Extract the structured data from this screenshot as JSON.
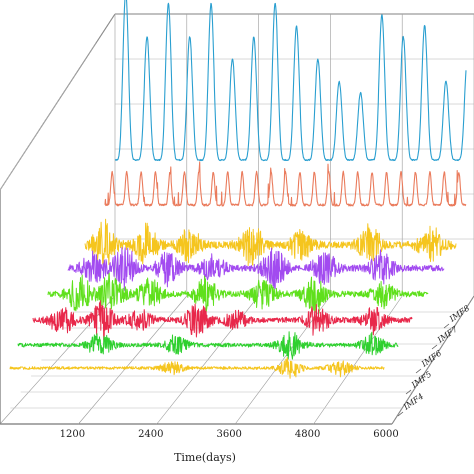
{
  "chart_data": {
    "type": "line",
    "view": "3d-waterfall",
    "xlabel": "Time(days)",
    "x_ticks": [
      1200,
      2400,
      3600,
      4800,
      6000
    ],
    "xlim": [
      0,
      6000
    ],
    "depth_ticks": [
      "IMF4",
      "IMF5",
      "IMF6",
      "IMF7",
      "IMF8"
    ],
    "grid": true,
    "series": [
      {
        "color": "#f5c51e",
        "amplitude": 0.12,
        "peaks": [
          {
            "x": 2600,
            "v": 0.6
          },
          {
            "x": 4500,
            "v": 1.0
          },
          {
            "x": 5300,
            "v": 0.8
          }
        ]
      },
      {
        "color": "#2fd02f",
        "amplitude": 0.18,
        "peaks": [
          {
            "x": 1300,
            "v": 0.9
          },
          {
            "x": 2500,
            "v": 0.7
          },
          {
            "x": 4300,
            "v": 1.0
          },
          {
            "x": 5600,
            "v": 0.8
          }
        ]
      },
      {
        "color": "#e8284a",
        "amplitude": 0.28,
        "peaks": [
          {
            "x": 450,
            "v": 0.8
          },
          {
            "x": 1100,
            "v": 1.0
          },
          {
            "x": 1700,
            "v": 0.6
          },
          {
            "x": 2600,
            "v": 0.9
          },
          {
            "x": 3200,
            "v": 0.5
          },
          {
            "x": 4500,
            "v": 0.9
          },
          {
            "x": 5400,
            "v": 0.7
          }
        ]
      },
      {
        "color": "#5fe01c",
        "amplitude": 0.36,
        "peaks": [
          {
            "x": 500,
            "v": 0.9
          },
          {
            "x": 1000,
            "v": 1.0
          },
          {
            "x": 1600,
            "v": 0.7
          },
          {
            "x": 2500,
            "v": 0.8
          },
          {
            "x": 3400,
            "v": 0.8
          },
          {
            "x": 4200,
            "v": 1.0
          },
          {
            "x": 5300,
            "v": 0.6
          }
        ]
      },
      {
        "color": "#a24bf0",
        "amplitude": 0.42,
        "peaks": [
          {
            "x": 400,
            "v": 0.7
          },
          {
            "x": 900,
            "v": 1.0
          },
          {
            "x": 1600,
            "v": 0.8
          },
          {
            "x": 2300,
            "v": 0.6
          },
          {
            "x": 3300,
            "v": 0.9
          },
          {
            "x": 4100,
            "v": 0.8
          },
          {
            "x": 5000,
            "v": 0.7
          }
        ]
      },
      {
        "color": "#f5c51e",
        "amplitude": 0.48,
        "peaks": [
          {
            "x": 300,
            "v": 1.0
          },
          {
            "x": 1000,
            "v": 0.8
          },
          {
            "x": 1700,
            "v": 0.7
          },
          {
            "x": 2700,
            "v": 0.9
          },
          {
            "x": 3500,
            "v": 0.6
          },
          {
            "x": 4600,
            "v": 0.8
          },
          {
            "x": 5600,
            "v": 0.7
          }
        ]
      },
      {
        "color": "#ea7b5c",
        "amplitude": 0.85,
        "period": 240
      },
      {
        "color": "#2a9fd0",
        "amplitude": 1.0,
        "period": 365,
        "peak_heights": [
          0.75,
          0.55,
          0.7,
          0.55,
          0.7,
          0.45,
          0.55,
          0.7,
          0.6,
          0.45,
          0.35,
          0.3,
          0.65,
          0.55,
          0.6,
          0.35,
          0.45,
          0.7,
          0.6,
          0.6
        ]
      }
    ]
  }
}
